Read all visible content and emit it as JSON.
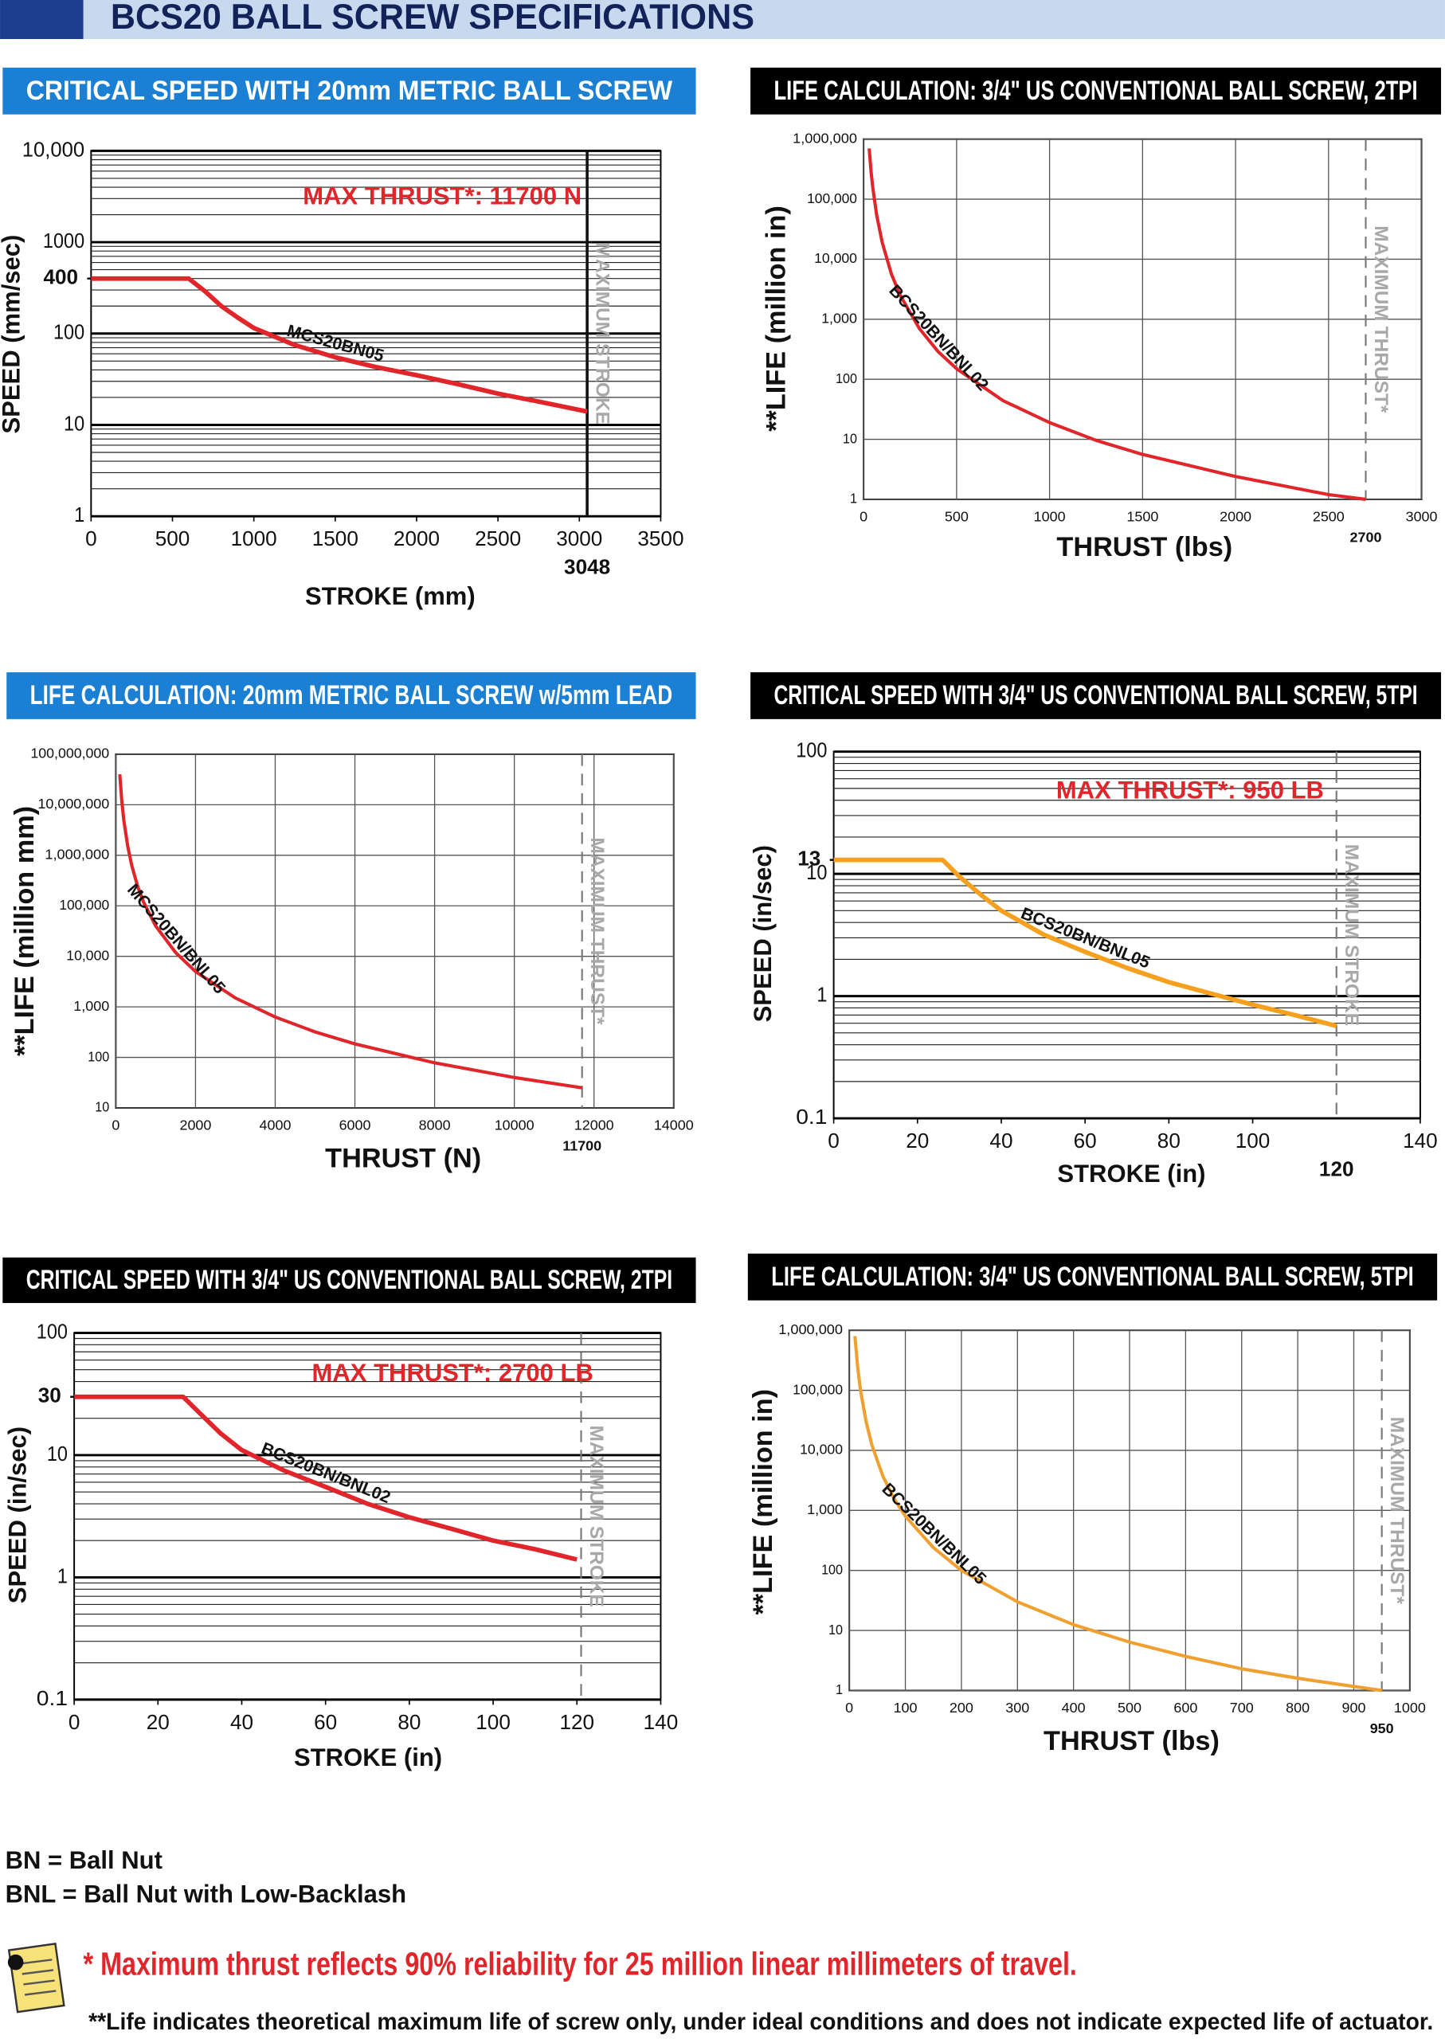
{
  "title": "BCS20 BALL SCREW SPECIFICATIONS",
  "chart_data": [
    {
      "type": "line",
      "title": "CRITICAL SPEED WITH 20mm METRIC BALL SCREW",
      "title_bg": "#1b7fd3",
      "xlabel": "STROKE (mm)",
      "ylabel": "SPEED (mm/sec)",
      "annotation": "MAX THRUST*: 11700 N",
      "yscale": "log",
      "grid": "y",
      "minor_grid": true,
      "xlim": [
        0,
        3500
      ],
      "xticks": [
        0,
        500,
        1000,
        1500,
        2000,
        2500,
        3000,
        3500
      ],
      "ylim": [
        1,
        10000
      ],
      "yticks": [
        1,
        10,
        100,
        1000,
        {
          "value": 10000,
          "label": "10,000"
        }
      ],
      "y_highlight": 400,
      "limit": {
        "x": 3048,
        "x_printed": true,
        "label": "MAXIMUM STROKE",
        "style": "solid"
      },
      "x": [
        0,
        600,
        700,
        800,
        900,
        1000,
        1250,
        1500,
        1750,
        2000,
        2250,
        2500,
        2750,
        3048
      ],
      "series": [
        {
          "name": "MCS20BN05",
          "color": "#e0262b",
          "values": [
            400,
            400,
            290,
            200,
            150,
            115,
            75,
            55,
            43,
            35,
            28,
            22,
            18,
            14
          ]
        }
      ]
    },
    {
      "type": "line",
      "title": "LIFE CALCULATION: 3/4\" US CONVENTIONAL BALL SCREW, 2TPI",
      "title_bg": "#000000",
      "xlabel": "THRUST (lbs)",
      "ylabel": "**LIFE (million in)",
      "yscale": "log",
      "grid": "both",
      "minor_grid": false,
      "xlim": [
        0,
        3000
      ],
      "xticks": [
        0,
        500,
        1000,
        1500,
        2000,
        2500,
        3000
      ],
      "ylim": [
        1,
        1000000
      ],
      "yticks": [
        1,
        10,
        100,
        {
          "value": 1000,
          "label": "1,000"
        },
        {
          "value": 10000,
          "label": "10,000"
        },
        {
          "value": 100000,
          "label": "100,000"
        },
        {
          "value": 1000000,
          "label": "1,000,000"
        }
      ],
      "limit": {
        "x": 2700,
        "x_printed": true,
        "label": "MAXIMUM THRUST*",
        "style": "dashed"
      },
      "x": [
        30,
        40,
        50,
        70,
        100,
        150,
        200,
        300,
        400,
        500,
        750,
        1000,
        1250,
        1500,
        2000,
        2500,
        2700
      ],
      "series": [
        {
          "name": "BCS20BN/BNL02",
          "color": "#e0262b",
          "values": [
            700000,
            290000,
            150000,
            55000,
            19000,
            5600,
            2400,
            700,
            290,
            150,
            44,
            19,
            9.6,
            5.6,
            2.4,
            1.2,
            1
          ]
        }
      ]
    },
    {
      "type": "line",
      "title": "LIFE CALCULATION: 20mm METRIC BALL SCREW w/5mm LEAD",
      "title_bg": "#1b7fd3",
      "xlabel": "THRUST (N)",
      "ylabel": "**LIFE (million mm)",
      "yscale": "log",
      "grid": "both",
      "minor_grid": false,
      "xlim": [
        0,
        14000
      ],
      "xticks": [
        0,
        2000,
        4000,
        6000,
        8000,
        10000,
        12000,
        14000
      ],
      "ylim": [
        10,
        100000000
      ],
      "yticks": [
        10,
        100,
        {
          "value": 1000,
          "label": "1,000"
        },
        {
          "value": 10000,
          "label": "10,000"
        },
        {
          "value": 100000,
          "label": "100,000"
        },
        {
          "value": 1000000,
          "label": "1,000,000"
        },
        {
          "value": 10000000,
          "label": "10,000,000"
        },
        {
          "value": 100000000,
          "label": "100,000,000"
        }
      ],
      "limit": {
        "x": 11700,
        "x_printed": true,
        "label": "MAXIMUM THRUST*",
        "style": "dashed"
      },
      "x": [
        100,
        150,
        200,
        300,
        400,
        550,
        700,
        1000,
        1500,
        2000,
        3000,
        4000,
        5000,
        6000,
        8000,
        10000,
        11700
      ],
      "series": [
        {
          "name": "MCS20BN/BNL05",
          "color": "#e0262b",
          "values": [
            40000000,
            12000000,
            5000000,
            1500000,
            630000,
            240000,
            117000,
            40000,
            11900,
            5000,
            1500,
            630,
            320,
            185,
            78,
            40,
            25
          ]
        }
      ]
    },
    {
      "type": "line",
      "title": "CRITICAL SPEED WITH 3/4\" US CONVENTIONAL BALL SCREW, 5TPI",
      "title_bg": "#000000",
      "xlabel": "STROKE (in)",
      "ylabel": "SPEED (in/sec)",
      "annotation": "MAX THRUST*: 950 LB",
      "yscale": "log",
      "grid": "y",
      "minor_grid": true,
      "xlim": [
        0,
        140
      ],
      "xticks": [
        0,
        20,
        40,
        60,
        80,
        100,
        140
      ],
      "ylim": [
        0.1,
        100
      ],
      "yticks": [
        0.1,
        1,
        10,
        100
      ],
      "y_highlight": 13,
      "limit": {
        "x": 120,
        "x_printed": true,
        "label": "MAXIMUM STROKE",
        "style": "dashed"
      },
      "x": [
        0,
        26,
        30,
        35,
        40,
        50,
        60,
        70,
        80,
        90,
        100,
        110,
        120
      ],
      "series": [
        {
          "name": "BCS20BN/BNL05",
          "color": "#f5a01e",
          "values": [
            13,
            13,
            9.5,
            6.8,
            5,
            3.2,
            2.3,
            1.7,
            1.3,
            1.05,
            0.85,
            0.7,
            0.57
          ]
        }
      ]
    },
    {
      "type": "line",
      "title": "CRITICAL SPEED WITH 3/4\" US CONVENTIONAL BALL SCREW, 2TPI",
      "title_bg": "#000000",
      "xlabel": "STROKE (in)",
      "ylabel": "SPEED (in/sec)",
      "annotation": "MAX THRUST*: 2700 LB",
      "yscale": "log",
      "grid": "y",
      "minor_grid": true,
      "xlim": [
        0,
        140
      ],
      "xticks": [
        0,
        20,
        40,
        60,
        80,
        100,
        120,
        140
      ],
      "ylim": [
        0.1,
        100
      ],
      "yticks": [
        0.1,
        1,
        10,
        100
      ],
      "y_highlight": 30,
      "limit": {
        "x": 121,
        "x_printed": false,
        "label": "MAXIMUM STROKE",
        "style": "dashed"
      },
      "x": [
        0,
        26,
        30,
        35,
        40,
        50,
        60,
        70,
        80,
        90,
        100,
        110,
        120
      ],
      "series": [
        {
          "name": "BCS20BN/BNL02",
          "color": "#e0262b",
          "values": [
            30,
            30,
            22,
            15,
            11,
            7.5,
            5.5,
            4,
            3.1,
            2.5,
            2,
            1.7,
            1.4
          ]
        }
      ]
    },
    {
      "type": "line",
      "title": "LIFE CALCULATION: 3/4\" US CONVENTIONAL BALL SCREW, 5TPI",
      "title_bg": "#000000",
      "xlabel": "THRUST (lbs)",
      "ylabel": "**LIFE (million in)",
      "yscale": "log",
      "grid": "both",
      "minor_grid": false,
      "xlim": [
        0,
        1000
      ],
      "xticks": [
        0,
        100,
        200,
        300,
        400,
        500,
        600,
        700,
        800,
        900,
        1000
      ],
      "ylim": [
        1,
        1000000
      ],
      "yticks": [
        1,
        10,
        100,
        {
          "value": 1000,
          "label": "1,000"
        },
        {
          "value": 10000,
          "label": "10,000"
        },
        {
          "value": 100000,
          "label": "100,000"
        },
        {
          "value": 1000000,
          "label": "1,000,000"
        }
      ],
      "limit": {
        "x": 950,
        "x_printed": true,
        "label": "MAXIMUM THRUST*",
        "style": "dashed"
      },
      "x": [
        10,
        15,
        20,
        30,
        40,
        60,
        80,
        100,
        150,
        200,
        300,
        400,
        500,
        600,
        700,
        800,
        950
      ],
      "series": [
        {
          "name": "BCS20BN/BNL05",
          "color": "#f0a030",
          "values": [
            800000,
            240000,
            100000,
            30000,
            12500,
            3700,
            1560,
            800,
            240,
            100,
            30,
            12.5,
            6.4,
            3.7,
            2.3,
            1.6,
            1
          ]
        }
      ]
    }
  ],
  "notes": {
    "abbreviations": [
      "BN = Ball Nut",
      "BNL = Ball Nut with Low-Backlash"
    ],
    "thrust": "* Maximum thrust reflects 90% reliability for 25 million linear millimeters of travel.",
    "life": "**Life indicates theoretical maximum life of screw only, under ideal conditions and does not indicate expected life of actuator."
  }
}
